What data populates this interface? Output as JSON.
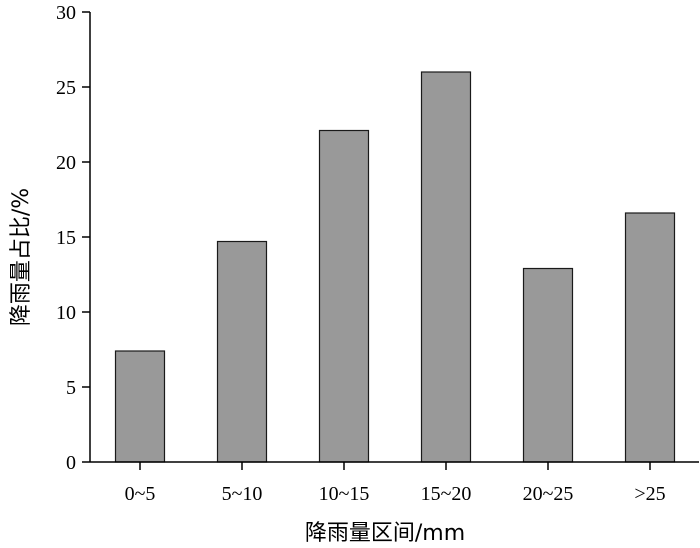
{
  "chart_data": {
    "type": "bar",
    "categories": [
      "0~5",
      "5~10",
      "10~15",
      "15~20",
      "20~25",
      ">25"
    ],
    "values": [
      7.4,
      14.7,
      22.1,
      26.0,
      12.9,
      16.6
    ],
    "xlabel": "降雨量区间/mm",
    "ylabel": "降雨量占比/%",
    "ylim": [
      0,
      30
    ],
    "yticks": [
      0,
      5,
      10,
      15,
      20,
      25,
      30
    ],
    "grid": false,
    "legend": "none",
    "bar_color": "#999999"
  }
}
